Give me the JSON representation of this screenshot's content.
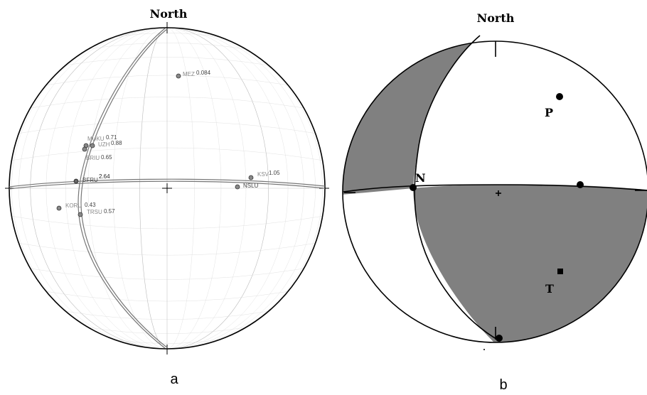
{
  "panel_a": {
    "north_label": "North",
    "caption": "a",
    "stations": [
      {
        "name": "MEZ",
        "value": "0.084"
      },
      {
        "name": "MUKU",
        "value": "0.71"
      },
      {
        "name": "UZH",
        "value": "0.88"
      },
      {
        "name": "BRIU",
        "value": "0.65"
      },
      {
        "name": "BFRU",
        "value": "2.64"
      },
      {
        "name": "KSV",
        "value": "1.05"
      },
      {
        "name": "NSLU",
        "value": ""
      },
      {
        "name": "KORU",
        "value": "0.43"
      },
      {
        "name": "TRSU",
        "value": "0.57"
      }
    ]
  },
  "panel_b": {
    "north_label": "North",
    "caption": "b",
    "p_label": "P",
    "t_label": "T",
    "n_label": "N",
    "fill_color": "#808080"
  }
}
